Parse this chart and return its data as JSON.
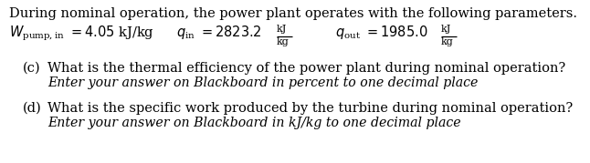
{
  "bg_color": "#ffffff",
  "text_color": "#000000",
  "line1": "During nominal operation, the power plant operates with the following parameters.",
  "part_c_q": "What is the thermal efficiency of the power plant during nominal operation?",
  "part_c_ans": "Enter your answer on Blackboard in percent to one decimal place",
  "part_d_q": "What is the specific work produced by the turbine during nominal operation?",
  "part_d_ans": "Enter your answer on Blackboard in kJ/kg to one decimal place",
  "font_size": 10.5
}
